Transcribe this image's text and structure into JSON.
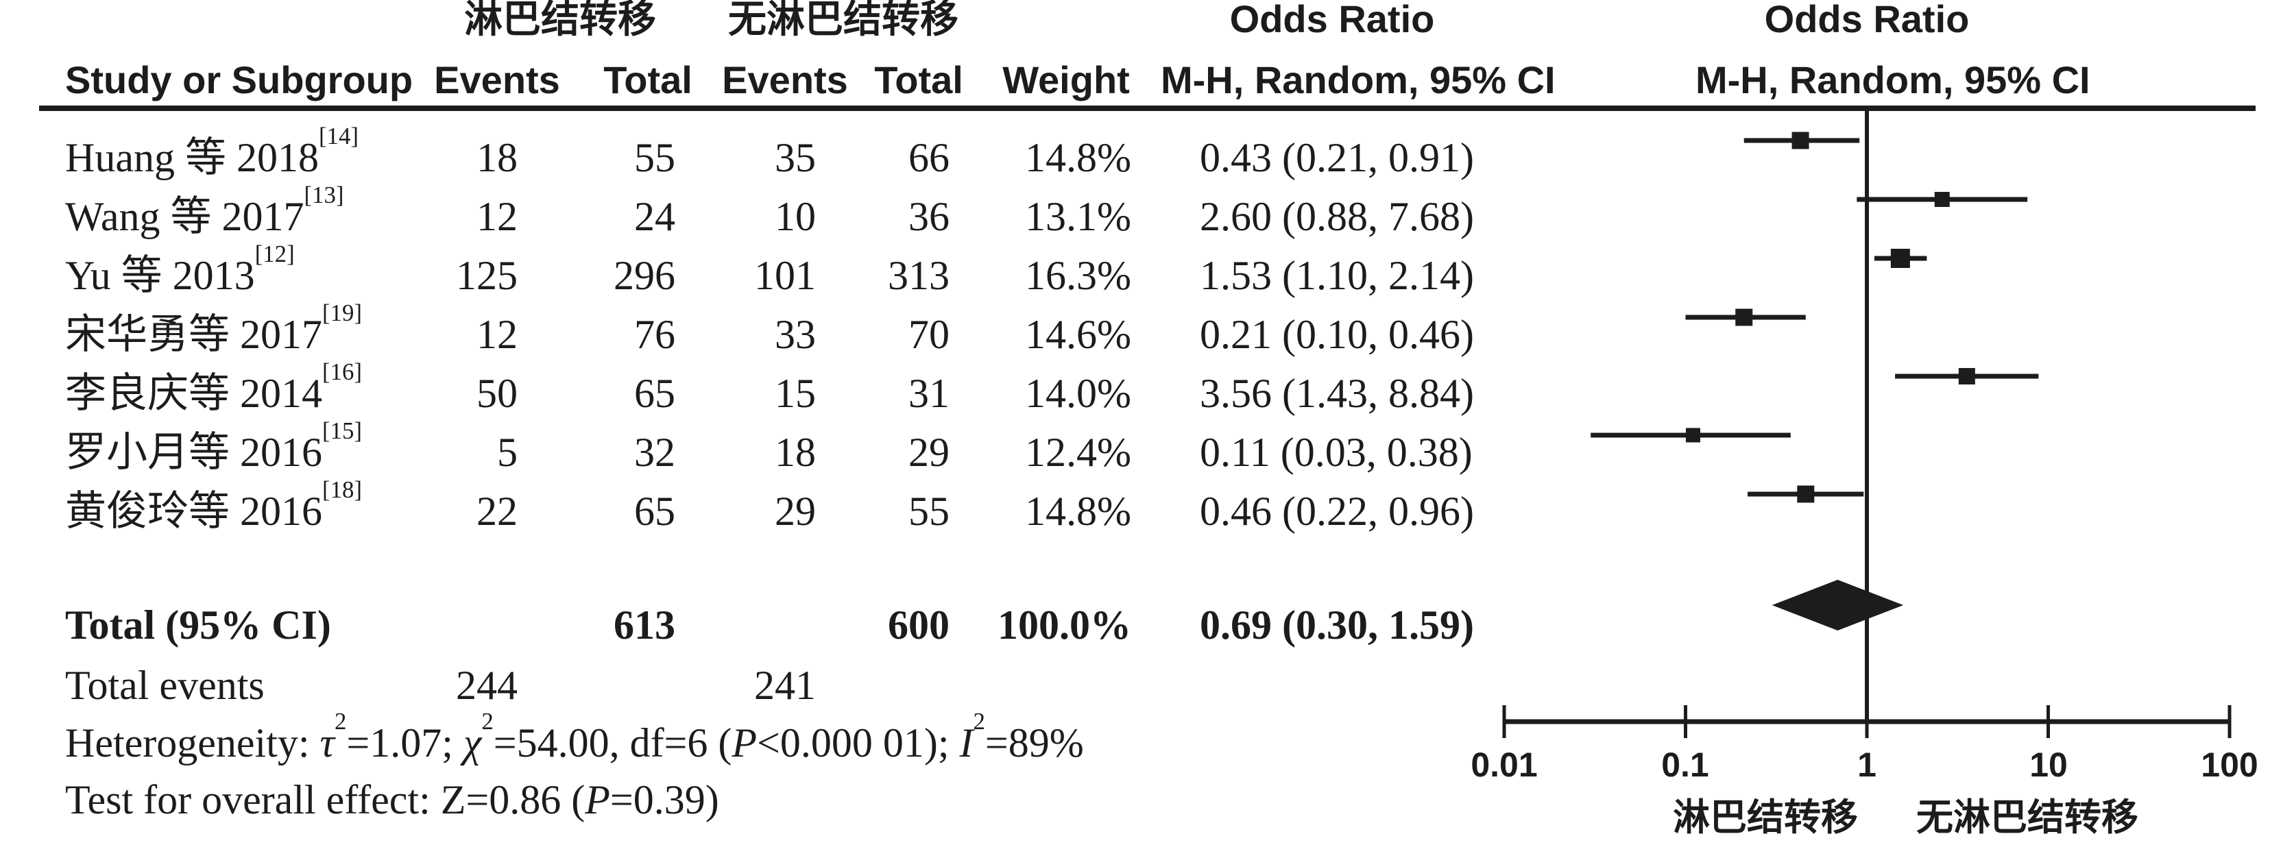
{
  "header": {
    "group1": "淋巴结转移",
    "group2": "无淋巴结转移",
    "or_title": "Odds Ratio",
    "or_sub": "M-H, Random, 95% CI",
    "plot_title": "Odds Ratio",
    "plot_sub": "M-H, Random, 95% CI",
    "col_study": "Study or Subgroup",
    "col_events": "Events",
    "col_total": "Total",
    "col_events2": "Events",
    "col_total2": "Total",
    "col_weight": "Weight"
  },
  "studies": [
    {
      "name": "Huang 等 2018",
      "ref": "[14]",
      "events1": "18",
      "total1": "55",
      "events2": "35",
      "total2": "66",
      "weight": "14.8%",
      "or_ci": "0.43 (0.21, 0.91)"
    },
    {
      "name": "Wang 等 2017",
      "ref": "[13]",
      "events1": "12",
      "total1": "24",
      "events2": "10",
      "total2": "36",
      "weight": "13.1%",
      "or_ci": "2.60 (0.88, 7.68)"
    },
    {
      "name": "Yu 等 2013",
      "ref": "[12]",
      "events1": "125",
      "total1": "296",
      "events2": "101",
      "total2": "313",
      "weight": "16.3%",
      "or_ci": "1.53 (1.10, 2.14)"
    },
    {
      "name": "宋华勇等 2017",
      "ref": "[19]",
      "events1": "12",
      "total1": "76",
      "events2": "33",
      "total2": "70",
      "weight": "14.6%",
      "or_ci": "0.21 (0.10, 0.46)"
    },
    {
      "name": "李良庆等 2014",
      "ref": "[16]",
      "events1": "50",
      "total1": "65",
      "events2": "15",
      "total2": "31",
      "weight": "14.0%",
      "or_ci": "3.56 (1.43, 8.84)"
    },
    {
      "name": "罗小月等 2016",
      "ref": "[15]",
      "events1": "5",
      "total1": "32",
      "events2": "18",
      "total2": "29",
      "weight": "12.4%",
      "or_ci": "0.11 (0.03, 0.38)"
    },
    {
      "name": "黄俊玲等 2016",
      "ref": "[18]",
      "events1": "22",
      "total1": "65",
      "events2": "29",
      "total2": "55",
      "weight": "14.8%",
      "or_ci": "0.46 (0.22, 0.96)"
    }
  ],
  "total_row": {
    "label": "Total (95% CI)",
    "total1": "613",
    "total2": "600",
    "weight": "100.0%",
    "or_ci": "0.69 (0.30, 1.59)"
  },
  "total_events": {
    "label": "Total events",
    "events1": "244",
    "events2": "241"
  },
  "heterogeneity": {
    "label": "Heterogeneity: ",
    "tau": "τ",
    "tau_sup": "2",
    "seg1": "=1.07; ",
    "chi": "χ",
    "chi_sup": "2",
    "seg2": "=54.00, df=6 (",
    "p": "P",
    "seg3": "<0.000 01); ",
    "i": "I",
    "i_sup": "2",
    "seg4": "=89%"
  },
  "overall_test": {
    "label": "Test for overall effect: Z=0.86 (",
    "p": "P",
    "seg1": "=0.39)"
  },
  "axis": {
    "tick_labels": [
      "0.01",
      "0.1",
      "1",
      "10",
      "100"
    ],
    "favours_left": "淋巴结转移",
    "favours_right": "无淋巴结转移"
  },
  "colors": {
    "ink": "#1c1c1c",
    "background": "#ffffff"
  },
  "chart_data": {
    "type": "forest",
    "x_scale": "log10",
    "x_ticks": [
      0.01,
      0.1,
      1,
      10,
      100
    ],
    "x_range": [
      0.01,
      100
    ],
    "vline": 1,
    "effect_measure": "Odds Ratio, M-H Random 95% CI",
    "studies": [
      {
        "label": "Huang 等 2018[14]",
        "or": 0.43,
        "ci_low": 0.21,
        "ci_high": 0.91,
        "weight_pct": 14.8
      },
      {
        "label": "Wang 等 2017[13]",
        "or": 2.6,
        "ci_low": 0.88,
        "ci_high": 7.68,
        "weight_pct": 13.1
      },
      {
        "label": "Yu 等 2013[12]",
        "or": 1.53,
        "ci_low": 1.1,
        "ci_high": 2.14,
        "weight_pct": 16.3
      },
      {
        "label": "宋华勇等 2017[19]",
        "or": 0.21,
        "ci_low": 0.1,
        "ci_high": 0.46,
        "weight_pct": 14.6
      },
      {
        "label": "李良庆等 2014[16]",
        "or": 3.56,
        "ci_low": 1.43,
        "ci_high": 8.84,
        "weight_pct": 14.0
      },
      {
        "label": "罗小月等 2016[15]",
        "or": 0.11,
        "ci_low": 0.03,
        "ci_high": 0.38,
        "weight_pct": 12.4
      },
      {
        "label": "黄俊玲等 2016[18]",
        "or": 0.46,
        "ci_low": 0.22,
        "ci_high": 0.96,
        "weight_pct": 14.8
      }
    ],
    "total": {
      "label": "Total (95% CI)",
      "or": 0.69,
      "ci_low": 0.3,
      "ci_high": 1.59
    }
  }
}
